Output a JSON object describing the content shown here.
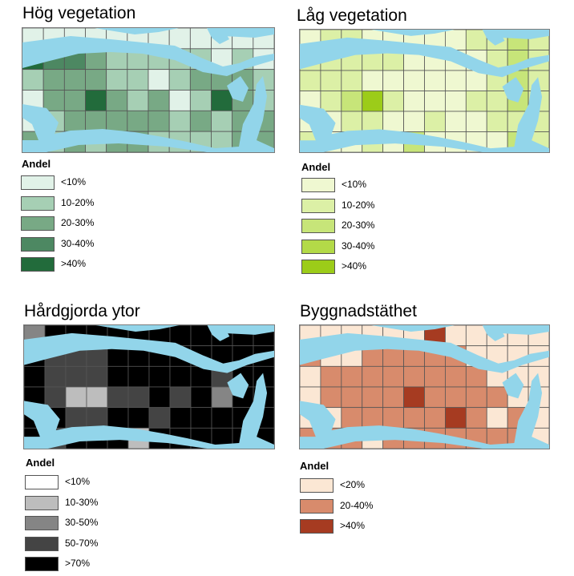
{
  "water_color": "#92d5ea",
  "grid_line_color": "#555555",
  "legend_heading": "Andel",
  "panels": [
    {
      "id": "hog",
      "title": "Hög vegetation",
      "classes": [
        {
          "label": "<10%",
          "color": "#e1f2e8"
        },
        {
          "label": "10-20%",
          "color": "#a6cfb4"
        },
        {
          "label": "20-30%",
          "color": "#78a985"
        },
        {
          "label": "30-40%",
          "color": "#4d8862"
        },
        {
          "label": ">40%",
          "color": "#226b3b"
        }
      ],
      "grid": [
        [
          0,
          0,
          0,
          0,
          0,
          0,
          0,
          0,
          0,
          0,
          0,
          0
        ],
        [
          4,
          3,
          3,
          2,
          1,
          1,
          1,
          1,
          1,
          0,
          1,
          0
        ],
        [
          1,
          2,
          2,
          2,
          1,
          1,
          0,
          1,
          2,
          2,
          2,
          1
        ],
        [
          0,
          2,
          2,
          4,
          2,
          1,
          2,
          0,
          1,
          4,
          2,
          1
        ],
        [
          0,
          1,
          2,
          2,
          2,
          2,
          2,
          1,
          2,
          1,
          2,
          2
        ],
        [
          2,
          1,
          2,
          1,
          2,
          2,
          1,
          1,
          1,
          1,
          2,
          2
        ]
      ]
    },
    {
      "id": "lag",
      "title": "Låg vegetation",
      "classes": [
        {
          "label": "<10%",
          "color": "#eff8d1"
        },
        {
          "label": "10-20%",
          "color": "#dcf0a6"
        },
        {
          "label": "20-30%",
          "color": "#c7e579"
        },
        {
          "label": "30-40%",
          "color": "#b3da48"
        },
        {
          "label": ">40%",
          "color": "#9ccc19"
        }
      ],
      "grid": [
        [
          0,
          1,
          1,
          0,
          0,
          0,
          0,
          0,
          1,
          1,
          2,
          1
        ],
        [
          1,
          1,
          1,
          1,
          1,
          0,
          0,
          0,
          0,
          1,
          2,
          1
        ],
        [
          1,
          1,
          1,
          0,
          0,
          0,
          0,
          0,
          0,
          1,
          2,
          1
        ],
        [
          0,
          1,
          2,
          4,
          1,
          0,
          0,
          0,
          1,
          1,
          2,
          1
        ],
        [
          0,
          0,
          1,
          1,
          0,
          0,
          1,
          0,
          0,
          1,
          1,
          1
        ],
        [
          1,
          0,
          0,
          1,
          0,
          2,
          0,
          0,
          0,
          0,
          2,
          1
        ]
      ]
    },
    {
      "id": "hard",
      "title": "Hårdgjorda ytor",
      "classes": [
        {
          "label": "<10%",
          "color": "#ffffff"
        },
        {
          "label": "10-30%",
          "color": "#bdbdbd"
        },
        {
          "label": "30-50%",
          "color": "#858585"
        },
        {
          "label": "50-70%",
          "color": "#444444"
        },
        {
          "label": ">70%",
          "color": "#000000"
        }
      ],
      "grid": [
        [
          2,
          4,
          4,
          4,
          4,
          4,
          4,
          4,
          4,
          4,
          4,
          4
        ],
        [
          4,
          3,
          3,
          3,
          4,
          4,
          4,
          4,
          4,
          4,
          4,
          4
        ],
        [
          4,
          3,
          3,
          3,
          4,
          4,
          4,
          4,
          4,
          3,
          4,
          4
        ],
        [
          4,
          3,
          1,
          1,
          3,
          3,
          4,
          3,
          4,
          2,
          4,
          4
        ],
        [
          4,
          4,
          3,
          3,
          4,
          4,
          3,
          4,
          4,
          4,
          4,
          4
        ],
        [
          4,
          3,
          4,
          4,
          4,
          1,
          4,
          4,
          4,
          4,
          4,
          4
        ]
      ]
    },
    {
      "id": "bygg",
      "title": "Byggnadstäthet",
      "classes": [
        {
          "label": "<20%",
          "color": "#fbe7d4"
        },
        {
          "label": "20-40%",
          "color": "#d88b6c"
        },
        {
          "label": ">40%",
          "color": "#a63b21"
        }
      ],
      "grid": [
        [
          0,
          0,
          0,
          0,
          0,
          0,
          2,
          0,
          0,
          0,
          0,
          0
        ],
        [
          1,
          0,
          0,
          1,
          1,
          1,
          1,
          1,
          0,
          0,
          0,
          0
        ],
        [
          0,
          1,
          1,
          1,
          1,
          1,
          1,
          1,
          1,
          0,
          0,
          0
        ],
        [
          0,
          1,
          1,
          1,
          1,
          2,
          1,
          1,
          1,
          1,
          0,
          0
        ],
        [
          0,
          0,
          1,
          1,
          1,
          1,
          1,
          2,
          1,
          0,
          1,
          0
        ],
        [
          1,
          1,
          1,
          0,
          1,
          1,
          1,
          1,
          1,
          1,
          1,
          0
        ]
      ]
    }
  ]
}
